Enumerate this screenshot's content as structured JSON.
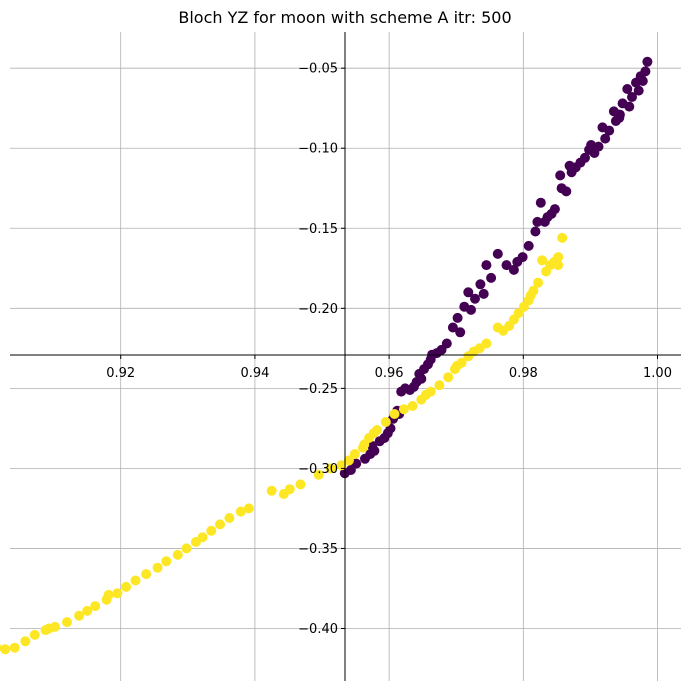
{
  "chart_data": {
    "type": "scatter",
    "title": "Bloch YZ for moon with scheme A itr: 500",
    "xlabel": "",
    "ylabel": "",
    "xlim": [
      0.9035,
      1.0035
    ],
    "ylim": [
      -0.4328,
      -0.0274
    ],
    "grid": true,
    "spines": "centered",
    "xticks": [
      0.92,
      0.94,
      0.96,
      0.98,
      1.0
    ],
    "xtick_labels": [
      "0.92",
      "0.94",
      "0.96",
      "0.98",
      "1.00"
    ],
    "yticks": [
      -0.05,
      -0.1,
      -0.15,
      -0.2,
      -0.25,
      -0.3,
      -0.35,
      -0.4
    ],
    "ytick_labels": [
      "−0.05",
      "−0.10",
      "−0.15",
      "−0.20",
      "−0.25",
      "−0.30",
      "−0.35",
      "−0.40"
    ],
    "colors": {
      "class_0": "#440154",
      "class_1": "#fde725"
    },
    "series": [
      {
        "color": "#440154",
        "points": [
          [
            0.9985,
            -0.046
          ],
          [
            0.9982,
            -0.052
          ],
          [
            0.9978,
            -0.058
          ],
          [
            0.9972,
            -0.064
          ],
          [
            0.9968,
            -0.059
          ],
          [
            0.9962,
            -0.068
          ],
          [
            0.9958,
            -0.074
          ],
          [
            0.9955,
            -0.063
          ],
          [
            0.9948,
            -0.072
          ],
          [
            0.9944,
            -0.079
          ],
          [
            0.9938,
            -0.083
          ],
          [
            0.9935,
            -0.077
          ],
          [
            0.9928,
            -0.089
          ],
          [
            0.9922,
            -0.094
          ],
          [
            0.9918,
            -0.087
          ],
          [
            0.9912,
            -0.099
          ],
          [
            0.9906,
            -0.103
          ],
          [
            0.9898,
            -0.101
          ],
          [
            0.9892,
            -0.106
          ],
          [
            0.9885,
            -0.109
          ],
          [
            0.9878,
            -0.112
          ],
          [
            0.9872,
            -0.115
          ],
          [
            0.9869,
            -0.111
          ],
          [
            0.9864,
            -0.127
          ],
          [
            0.9857,
            -0.125
          ],
          [
            0.9847,
            -0.138
          ],
          [
            0.9842,
            -0.141
          ],
          [
            0.9836,
            -0.143
          ],
          [
            0.9826,
            -0.134
          ],
          [
            0.9821,
            -0.146
          ],
          [
            0.9818,
            -0.152
          ],
          [
            0.9808,
            -0.161
          ],
          [
            0.9799,
            -0.168
          ],
          [
            0.9786,
            -0.176
          ],
          [
            0.9775,
            -0.173
          ],
          [
            0.9762,
            -0.166
          ],
          [
            0.9752,
            -0.181
          ],
          [
            0.9745,
            -0.173
          ],
          [
            0.9736,
            -0.185
          ],
          [
            0.9728,
            -0.194
          ],
          [
            0.9722,
            -0.201
          ],
          [
            0.9718,
            -0.19
          ],
          [
            0.9712,
            -0.199
          ],
          [
            0.9702,
            -0.206
          ],
          [
            0.9695,
            -0.212
          ],
          [
            0.9686,
            -0.222
          ],
          [
            0.9678,
            -0.226
          ],
          [
            0.9671,
            -0.228
          ],
          [
            0.9664,
            -0.229
          ],
          [
            0.9658,
            -0.235
          ],
          [
            0.9652,
            -0.238
          ],
          [
            0.9645,
            -0.241
          ],
          [
            0.9641,
            -0.246
          ],
          [
            0.9637,
            -0.249
          ],
          [
            0.9631,
            -0.251
          ],
          [
            0.9624,
            -0.25
          ],
          [
            0.9618,
            -0.252
          ],
          [
            0.9612,
            -0.264
          ],
          [
            0.9606,
            -0.269
          ],
          [
            0.9602,
            -0.275
          ],
          [
            0.9598,
            -0.278
          ],
          [
            0.9593,
            -0.281
          ],
          [
            0.9586,
            -0.283
          ],
          [
            0.9578,
            -0.289
          ],
          [
            0.9572,
            -0.291
          ],
          [
            0.9564,
            -0.294
          ],
          [
            0.9551,
            -0.297
          ],
          [
            0.9543,
            -0.301
          ],
          [
            0.9534,
            -0.303
          ],
          [
            0.9648,
            -0.244
          ],
          [
            0.9662,
            -0.232
          ],
          [
            0.9706,
            -0.215
          ],
          [
            0.9741,
            -0.191
          ],
          [
            0.9791,
            -0.171
          ],
          [
            0.9832,
            -0.146
          ],
          [
            0.9855,
            -0.117
          ],
          [
            0.9901,
            -0.098
          ],
          [
            0.9943,
            -0.081
          ],
          [
            0.9975,
            -0.055
          ],
          [
            0.9615,
            -0.266
          ],
          [
            0.9575,
            -0.286
          ]
        ]
      },
      {
        "color": "#fde725",
        "points": [
          [
            0.9858,
            -0.156
          ],
          [
            0.9852,
            -0.168
          ],
          [
            0.9846,
            -0.171
          ],
          [
            0.984,
            -0.173
          ],
          [
            0.9834,
            -0.177
          ],
          [
            0.9828,
            -0.17
          ],
          [
            0.9822,
            -0.184
          ],
          [
            0.9815,
            -0.189
          ],
          [
            0.9808,
            -0.195
          ],
          [
            0.9801,
            -0.199
          ],
          [
            0.9793,
            -0.203
          ],
          [
            0.9786,
            -0.207
          ],
          [
            0.9779,
            -0.211
          ],
          [
            0.977,
            -0.214
          ],
          [
            0.9745,
            -0.222
          ],
          [
            0.9735,
            -0.225
          ],
          [
            0.9726,
            -0.227
          ],
          [
            0.9718,
            -0.23
          ],
          [
            0.9708,
            -0.234
          ],
          [
            0.9698,
            -0.238
          ],
          [
            0.9688,
            -0.243
          ],
          [
            0.9675,
            -0.248
          ],
          [
            0.9662,
            -0.252
          ],
          [
            0.9648,
            -0.257
          ],
          [
            0.9635,
            -0.261
          ],
          [
            0.9622,
            -0.263
          ],
          [
            0.9608,
            -0.266
          ],
          [
            0.9595,
            -0.271
          ],
          [
            0.9582,
            -0.276
          ],
          [
            0.957,
            -0.281
          ],
          [
            0.9561,
            -0.287
          ],
          [
            0.9549,
            -0.291
          ],
          [
            0.954,
            -0.295
          ],
          [
            0.9529,
            -0.298
          ],
          [
            0.9513,
            -0.3
          ],
          [
            0.9495,
            -0.304
          ],
          [
            0.9468,
            -0.31
          ],
          [
            0.9452,
            -0.313
          ],
          [
            0.9443,
            -0.316
          ],
          [
            0.9425,
            -0.314
          ],
          [
            0.9391,
            -0.325
          ],
          [
            0.9379,
            -0.327
          ],
          [
            0.9362,
            -0.331
          ],
          [
            0.9348,
            -0.335
          ],
          [
            0.9335,
            -0.339
          ],
          [
            0.9322,
            -0.343
          ],
          [
            0.9312,
            -0.346
          ],
          [
            0.9285,
            -0.354
          ],
          [
            0.9268,
            -0.358
          ],
          [
            0.9255,
            -0.362
          ],
          [
            0.9238,
            -0.366
          ],
          [
            0.9222,
            -0.37
          ],
          [
            0.9208,
            -0.374
          ],
          [
            0.9195,
            -0.378
          ],
          [
            0.9179,
            -0.382
          ],
          [
            0.9162,
            -0.386
          ],
          [
            0.915,
            -0.389
          ],
          [
            0.9138,
            -0.392
          ],
          [
            0.912,
            -0.396
          ],
          [
            0.9102,
            -0.399
          ],
          [
            0.9088,
            -0.401
          ],
          [
            0.9072,
            -0.404
          ],
          [
            0.9058,
            -0.408
          ],
          [
            0.9042,
            -0.412
          ],
          [
            0.9028,
            -0.413
          ],
          [
            0.8985,
            -0.422
          ],
          [
            0.9852,
            -0.173
          ],
          [
            0.9811,
            -0.192
          ],
          [
            0.9762,
            -0.212
          ],
          [
            0.9701,
            -0.236
          ],
          [
            0.9655,
            -0.254
          ],
          [
            0.9577,
            -0.278
          ],
          [
            0.9563,
            -0.285
          ],
          [
            0.9298,
            -0.35
          ],
          [
            0.9182,
            -0.379
          ],
          [
            0.9093,
            -0.4
          ],
          [
            0.9015,
            -0.412
          ]
        ]
      }
    ]
  }
}
